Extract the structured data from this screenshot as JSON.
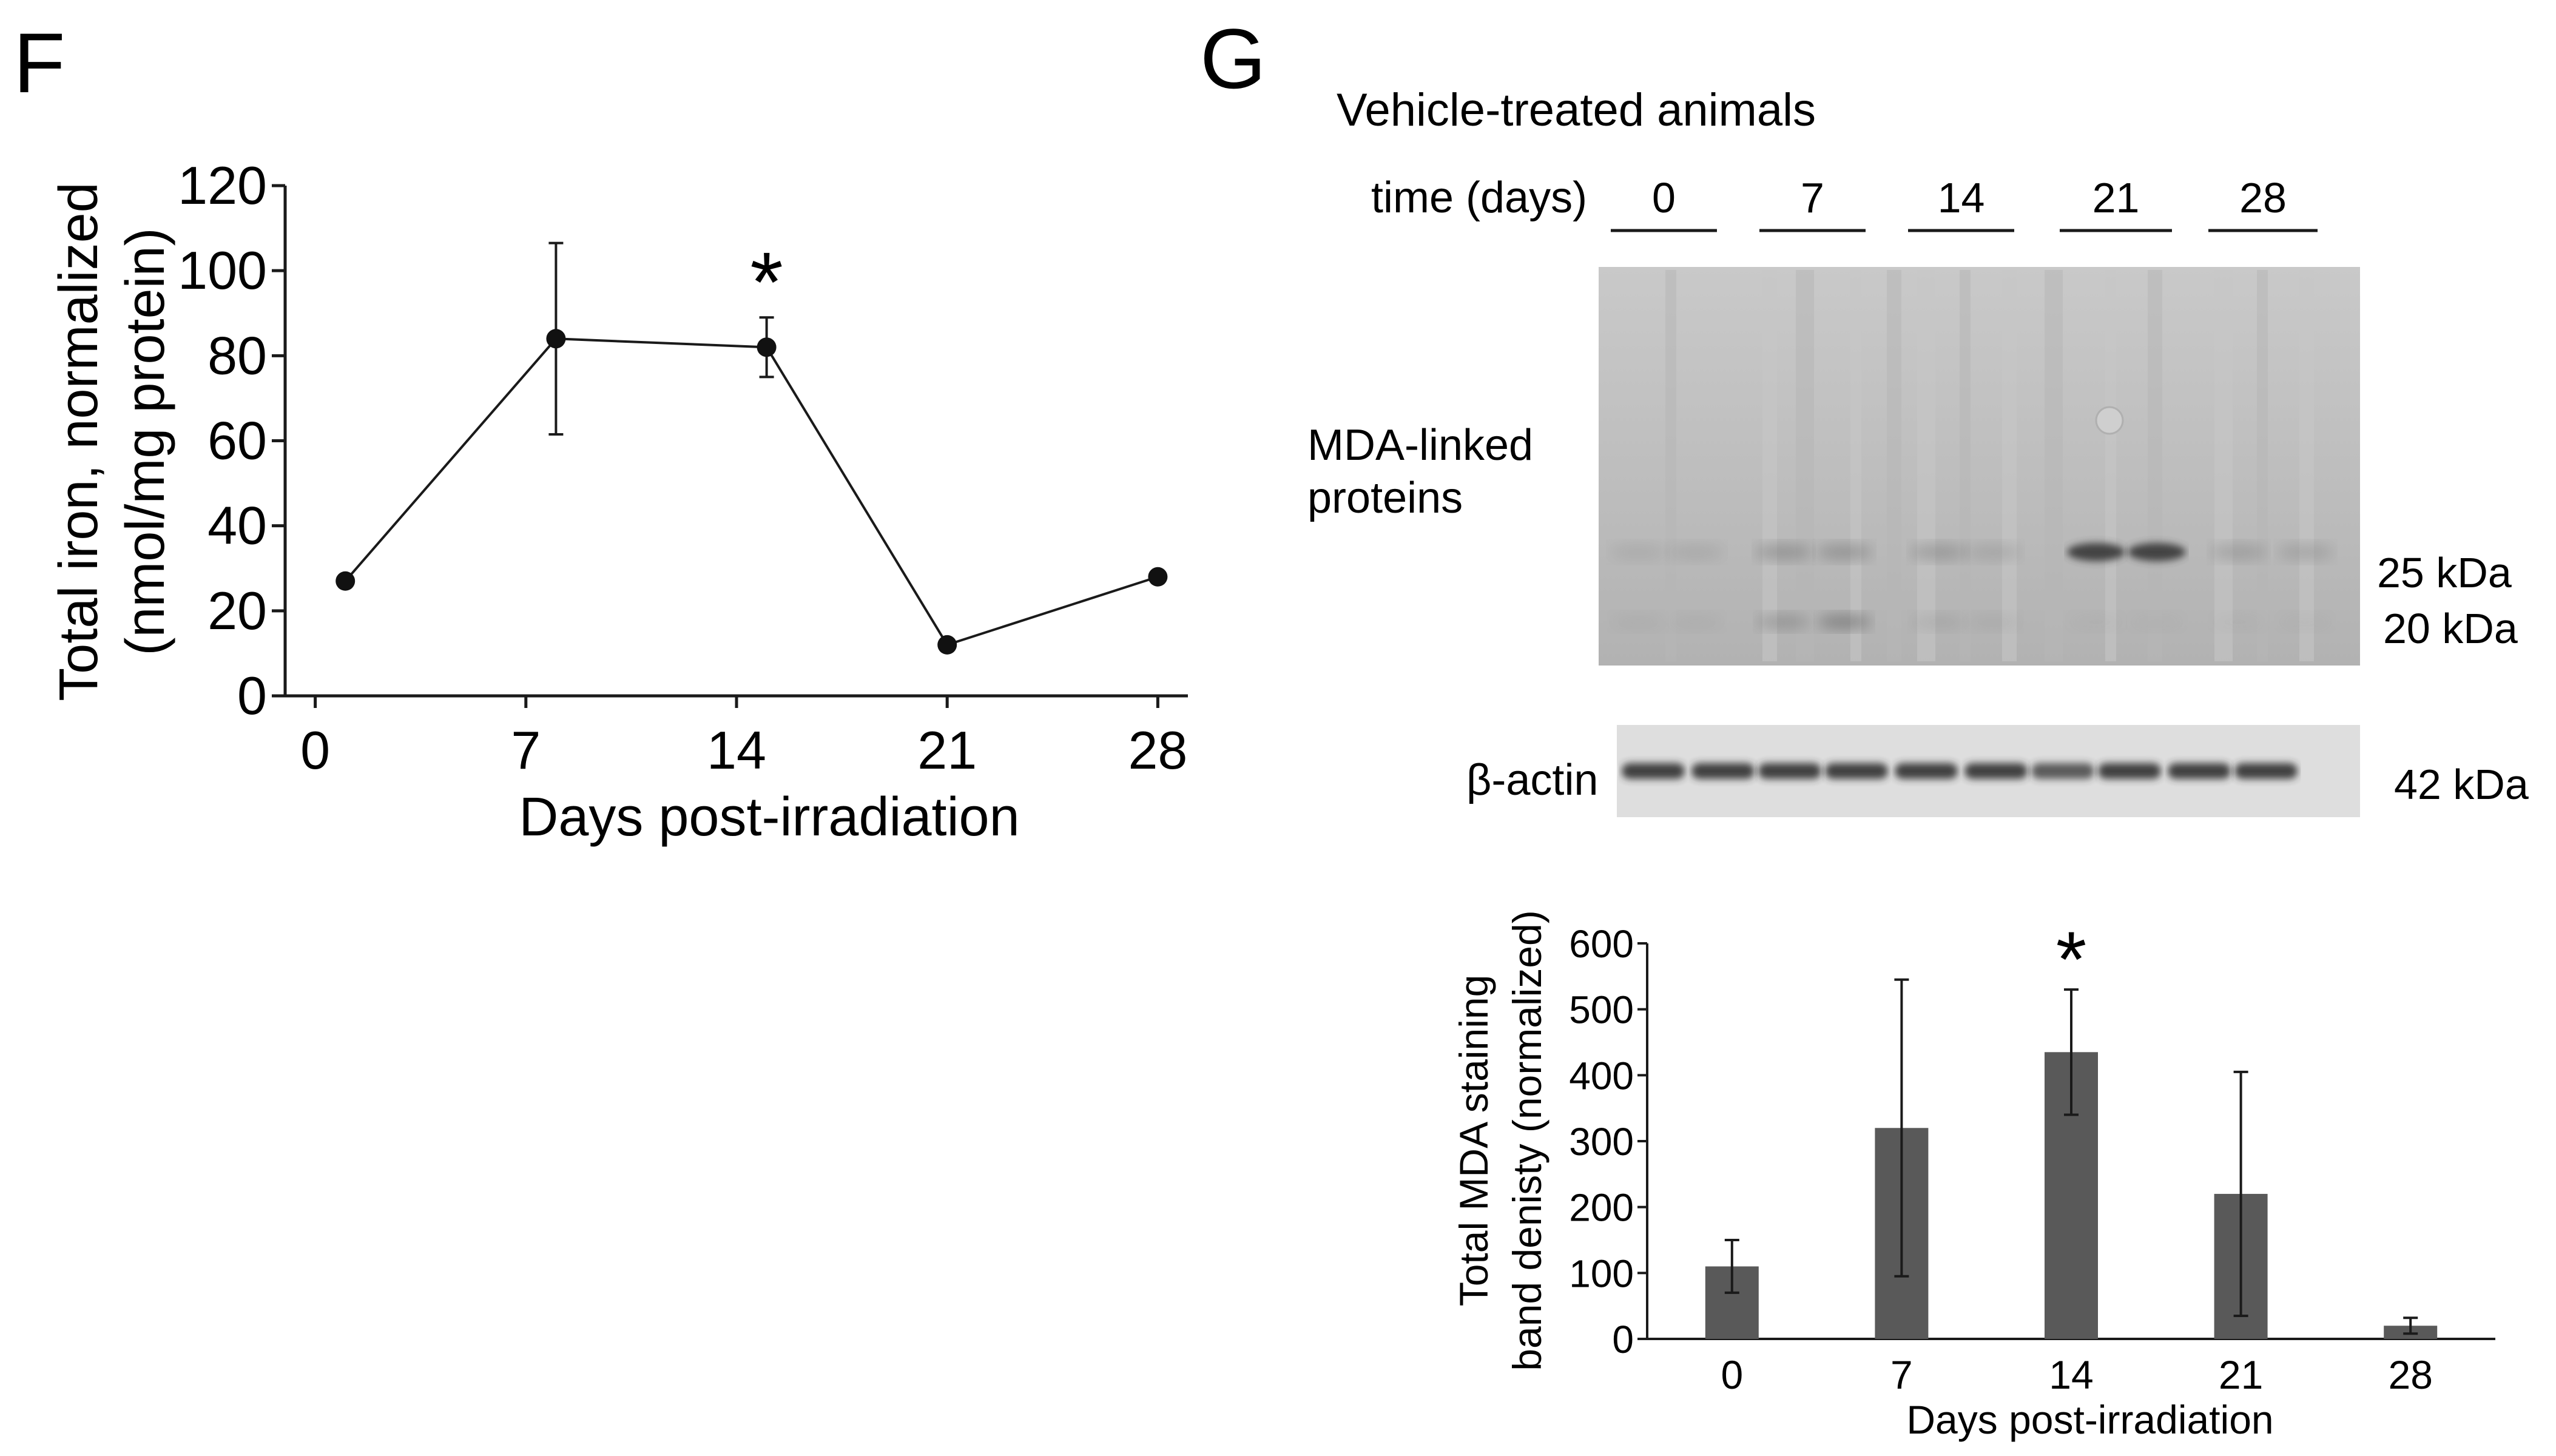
{
  "panels": {
    "f_label": "F",
    "g_label": "G"
  },
  "chart_data": [
    {
      "type": "line",
      "title": "",
      "xlabel": "Days post-irradiation",
      "ylabel": "Total iron, normalized",
      "ylabel2": "(nmol/mg protein)",
      "x": [
        1,
        8,
        15,
        21,
        28
      ],
      "xticks": [
        0,
        7,
        14,
        21,
        28
      ],
      "xtick_labels": [
        "0",
        "7",
        "14",
        "21",
        "28"
      ],
      "xlim": [
        -1,
        29
      ],
      "yticks": [
        0,
        20,
        40,
        60,
        80,
        100,
        120
      ],
      "ytick_labels": [
        "0",
        "20",
        "40",
        "60",
        "80",
        "100",
        "120"
      ],
      "ylim": [
        0,
        120
      ],
      "series": [
        {
          "name": "Total iron",
          "values": [
            27,
            84,
            82,
            12,
            28
          ],
          "errors": [
            0,
            22.5,
            7,
            0,
            0
          ]
        }
      ],
      "annotations": [
        {
          "text": "*",
          "x": 15
        }
      ],
      "grid": false
    },
    {
      "type": "bar",
      "title": "",
      "xlabel": "Days post-irradiation",
      "ylabel": "Total MDA staining",
      "ylabel2": "band denisty (normalized)",
      "categories": [
        "0",
        "7",
        "14",
        "21",
        "28"
      ],
      "values": [
        110,
        320,
        435,
        220,
        20
      ],
      "errors": [
        40,
        225,
        95,
        185,
        12
      ],
      "yticks": [
        0,
        100,
        200,
        300,
        400,
        500,
        600
      ],
      "ytick_labels": [
        "0",
        "100",
        "200",
        "300",
        "400",
        "500",
        "600"
      ],
      "ylim": [
        0,
        600
      ],
      "bar_color": "#595959",
      "annotations": [
        {
          "text": "*",
          "category": "14"
        }
      ],
      "grid": false
    }
  ],
  "blot": {
    "group_title": "Vehicle-treated animals",
    "time_label": "time (days)",
    "time_points": [
      "0",
      "7",
      "14",
      "21",
      "28"
    ],
    "mda_label_line1": "MDA-linked",
    "mda_label_line2": "proteins",
    "marker_25": "25 kDa",
    "marker_20": "20 kDa",
    "actin_label": "β-actin",
    "marker_42": "42 kDa",
    "colors": {
      "membrane": "#bdbdbd",
      "band_dark": "#3c3c3c",
      "actin_bg": "#dedede",
      "actin_band": "#2f2f2f"
    }
  }
}
